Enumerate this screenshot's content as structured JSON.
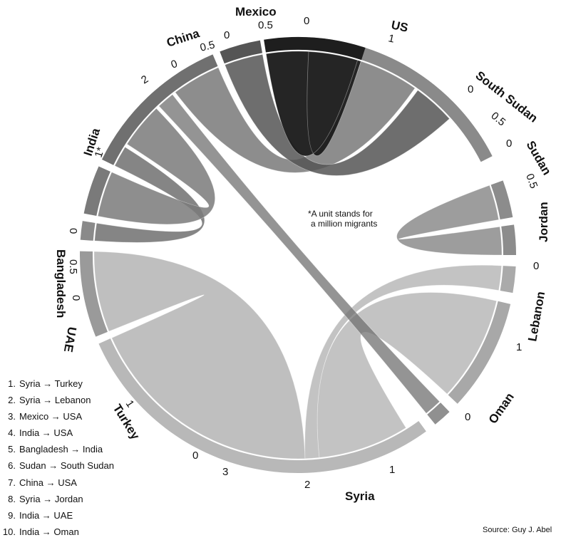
{
  "regions": {
    "us": "US",
    "mexico": "Mexico",
    "china": "China",
    "india": "India",
    "bangladesh": "Bangladesh",
    "uae": "UAE",
    "turkey": "Turkey",
    "syria": "Syria",
    "oman": "Oman",
    "lebanon": "Lebanon",
    "jordan": "Jordan",
    "sudan": "Sudan",
    "south_sudan": "South Sudan"
  },
  "ticks": {
    "zero": "0",
    "half": "0.5",
    "one": "1",
    "two": "2",
    "three": "3",
    "india_one": "1*"
  },
  "note": {
    "line1": "*A unit stands for",
    "line2": "a million migrants"
  },
  "legend": [
    {
      "num": "1.",
      "text": "Syria → Turkey"
    },
    {
      "num": "2.",
      "text": "Syria → Lebanon"
    },
    {
      "num": "3.",
      "text": "Mexico → USA"
    },
    {
      "num": "4.",
      "text": "India → USA"
    },
    {
      "num": "5.",
      "text": "Bangladesh → India"
    },
    {
      "num": "6.",
      "text": "Sudan → South Sudan"
    },
    {
      "num": "7.",
      "text": "China → USA"
    },
    {
      "num": "8.",
      "text": "Syria → Jordan"
    },
    {
      "num": "9.",
      "text": "India → UAE"
    },
    {
      "num": "10.",
      "text": "India → Oman"
    }
  ],
  "source": "Source: Guy J. Abel",
  "colors": {
    "mexico": "#1e1e1e",
    "china": "#555555",
    "india": "#707070",
    "bangladesh": "#7a7a7a",
    "sudan": "#8c8c8c",
    "syria": "#b8b8b8",
    "us": "#8a8a8a",
    "oman": "#909090",
    "lebanon": "#a8a8a8",
    "jordan": "#aaaaaa",
    "turkey": "#9a9a9a",
    "uae": "#8a8a8a",
    "south_sudan": "#8c8c8c"
  }
}
